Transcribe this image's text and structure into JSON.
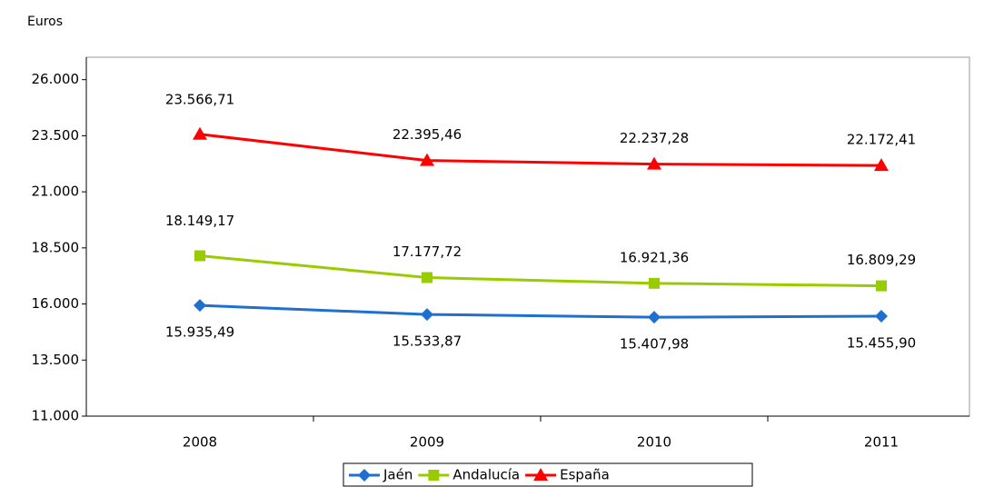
{
  "chart_data": {
    "type": "line",
    "y_axis_label": "Euros",
    "categories": [
      "2008",
      "2009",
      "2010",
      "2011"
    ],
    "series": [
      {
        "name": "Jaén",
        "color": "#1f6fd0",
        "marker": "diamond",
        "values": [
          15935.49,
          15533.87,
          15407.98,
          15455.9
        ],
        "value_labels": [
          "15.935,49",
          "15.533,87",
          "15.407,98",
          "15.455,90"
        ]
      },
      {
        "name": "Andalucía",
        "color": "#99cc00",
        "marker": "square",
        "values": [
          18149.17,
          17177.72,
          16921.36,
          16809.29
        ],
        "value_labels": [
          "18.149,17",
          "17.177,72",
          "16.921,36",
          "16.809,29"
        ]
      },
      {
        "name": "España",
        "color": "#ff0000",
        "marker": "triangle",
        "values": [
          23566.71,
          22395.46,
          22237.28,
          22172.41
        ],
        "value_labels": [
          "23.566,71",
          "22.395,46",
          "22.237,28",
          "22.172,41"
        ]
      }
    ],
    "ylim": [
      11000,
      27000
    ],
    "yticks": [
      {
        "value": 11000,
        "label": "11.000"
      },
      {
        "value": 13500,
        "label": "13.500"
      },
      {
        "value": 16000,
        "label": "16.000"
      },
      {
        "value": 18500,
        "label": "18.500"
      },
      {
        "value": 21000,
        "label": "21.000"
      },
      {
        "value": 23500,
        "label": "23.500"
      },
      {
        "value": 26000,
        "label": "26.000"
      }
    ],
    "grid": false,
    "legend": "bottom"
  }
}
